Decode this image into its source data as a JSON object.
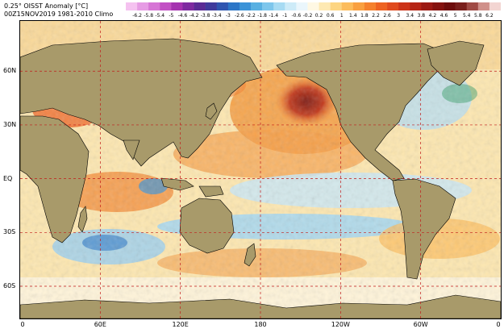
{
  "title_line1": "0.25° OISST Anomaly [°C]",
  "title_line2": "00Z15NOV2019  1981-2010 Climo",
  "legend": {
    "ticks": [
      "-6.2",
      "-5.8",
      "-5.4",
      "-5",
      "-4.6",
      "-4.2",
      "-3.8",
      "-3.4",
      "-3",
      "-2.6",
      "-2.2",
      "-1.8",
      "-1.4",
      "-1",
      "-0.6",
      "-0.2",
      "0.2",
      "0.6",
      "1",
      "1.4",
      "1.8",
      "2.2",
      "2.6",
      "3",
      "3.4",
      "3.8",
      "4.2",
      "4.6",
      "5",
      "5.4",
      "5.8",
      "6.2"
    ],
    "colors": [
      "#f5c2f0",
      "#e69be4",
      "#d675d5",
      "#c250c4",
      "#a533b0",
      "#7e2aa0",
      "#5a2b95",
      "#3f3a9c",
      "#2f55b0",
      "#2c76c7",
      "#3b93d8",
      "#58b0e2",
      "#7dc6ec",
      "#a7dbf3",
      "#cdebf8",
      "#eaf6fc",
      "#fff8e4",
      "#fee9b3",
      "#fdd582",
      "#fcbc5c",
      "#f9a040",
      "#f5812d",
      "#ee6322",
      "#e04a1d",
      "#cc3318",
      "#b52415",
      "#9c1913",
      "#85120f",
      "#6e0d0c",
      "#7a1f1c",
      "#a04a45",
      "#d0908a",
      "#f3d5d2"
    ]
  },
  "map": {
    "lat_labels": [
      "60N",
      "30N",
      "EQ",
      "30S",
      "60S"
    ],
    "lon_labels": [
      "0",
      "60E",
      "120E",
      "180",
      "120W",
      "60W",
      "0"
    ],
    "projection": "equirectangular, centered 180",
    "lat_range": [
      -78,
      88
    ],
    "lon_range": [
      0,
      360
    ]
  }
}
